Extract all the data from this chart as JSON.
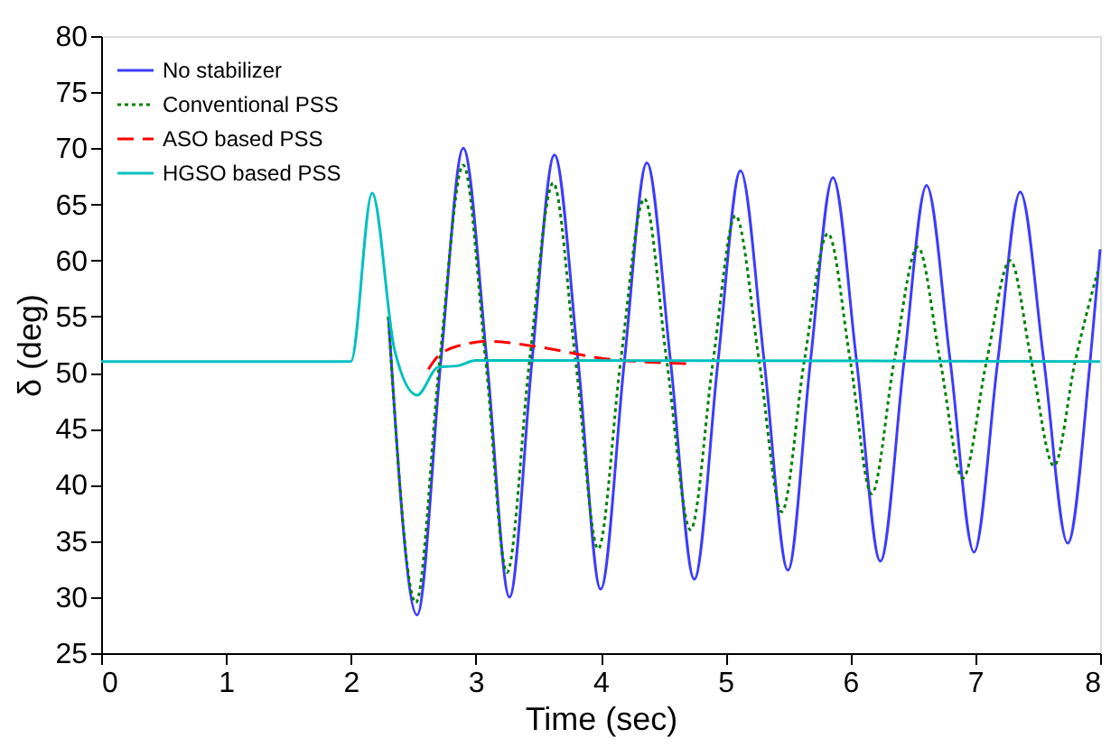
{
  "chart_data": {
    "type": "line",
    "xlabel": "Time (sec)",
    "ylabel": "δ (deg)",
    "xlim": [
      0,
      8
    ],
    "xticks": [
      0,
      1,
      2,
      3,
      4,
      5,
      6,
      7,
      8
    ],
    "ylim": [
      25,
      80
    ],
    "yticks": [
      25,
      30,
      35,
      40,
      45,
      50,
      55,
      60,
      65,
      70,
      75,
      80
    ],
    "grid": false,
    "legend": "top left",
    "marker": "none",
    "series": [
      {
        "name": "No stabilizer",
        "color": "#3c3cff",
        "line_style": "solid",
        "x": [
          2.3,
          2.53,
          2.72,
          2.9,
          3.09,
          3.27,
          3.45,
          3.63,
          3.82,
          4.0,
          4.19,
          4.37,
          4.56,
          4.75,
          4.94,
          5.12,
          5.31,
          5.5,
          5.68,
          5.86,
          6.05,
          6.24,
          6.43,
          6.61,
          6.8,
          6.99,
          7.18,
          7.36,
          7.55,
          7.74,
          7.92,
          8.0
        ],
        "values": [
          55,
          28.4,
          51,
          70,
          51,
          30,
          51,
          69.4,
          51,
          30.7,
          51,
          68.7,
          51,
          31.6,
          51,
          68,
          51,
          32.4,
          51,
          67.4,
          51,
          33.2,
          51,
          66.7,
          51,
          34,
          51,
          66.1,
          51,
          34.8,
          51,
          61
        ]
      },
      {
        "name": "Conventional PSS",
        "color": "#008000",
        "line_style": "dotted",
        "x": [
          2.3,
          2.52,
          2.71,
          2.9,
          3.08,
          3.25,
          3.43,
          3.62,
          3.8,
          3.98,
          4.16,
          4.35,
          4.53,
          4.72,
          4.9,
          5.08,
          5.27,
          5.45,
          5.63,
          5.82,
          6.0,
          6.17,
          6.35,
          6.54,
          6.72,
          6.9,
          7.09,
          7.28,
          7.45,
          7.63,
          7.8,
          7.98
        ],
        "values": [
          55,
          29.5,
          51,
          68.5,
          51,
          32.2,
          51,
          66.9,
          51,
          34.3,
          51,
          65.5,
          51,
          36,
          51,
          64,
          51,
          37.6,
          51,
          62.4,
          51,
          39.2,
          51,
          61.2,
          51,
          40.6,
          51,
          60,
          51,
          41.7,
          51,
          59
        ]
      },
      {
        "name": "ASO based PSS",
        "color": "#ff0000",
        "line_style": "dashed",
        "x": [
          2.62,
          2.7,
          2.9,
          3.1,
          3.5,
          4.0,
          4.7
        ],
        "values": [
          50.3,
          51.5,
          52.5,
          52.8,
          52.3,
          51.3,
          50.8
        ]
      },
      {
        "name": "HGSO based PSS",
        "color": "#00bfbf",
        "line_style": "solid",
        "x": [
          0,
          2.0,
          2.17,
          2.35,
          2.53,
          2.7,
          2.85,
          3.0,
          8.0
        ],
        "values": [
          51,
          51,
          66,
          52,
          48,
          50.5,
          50.6,
          51.1,
          51
        ]
      }
    ]
  }
}
